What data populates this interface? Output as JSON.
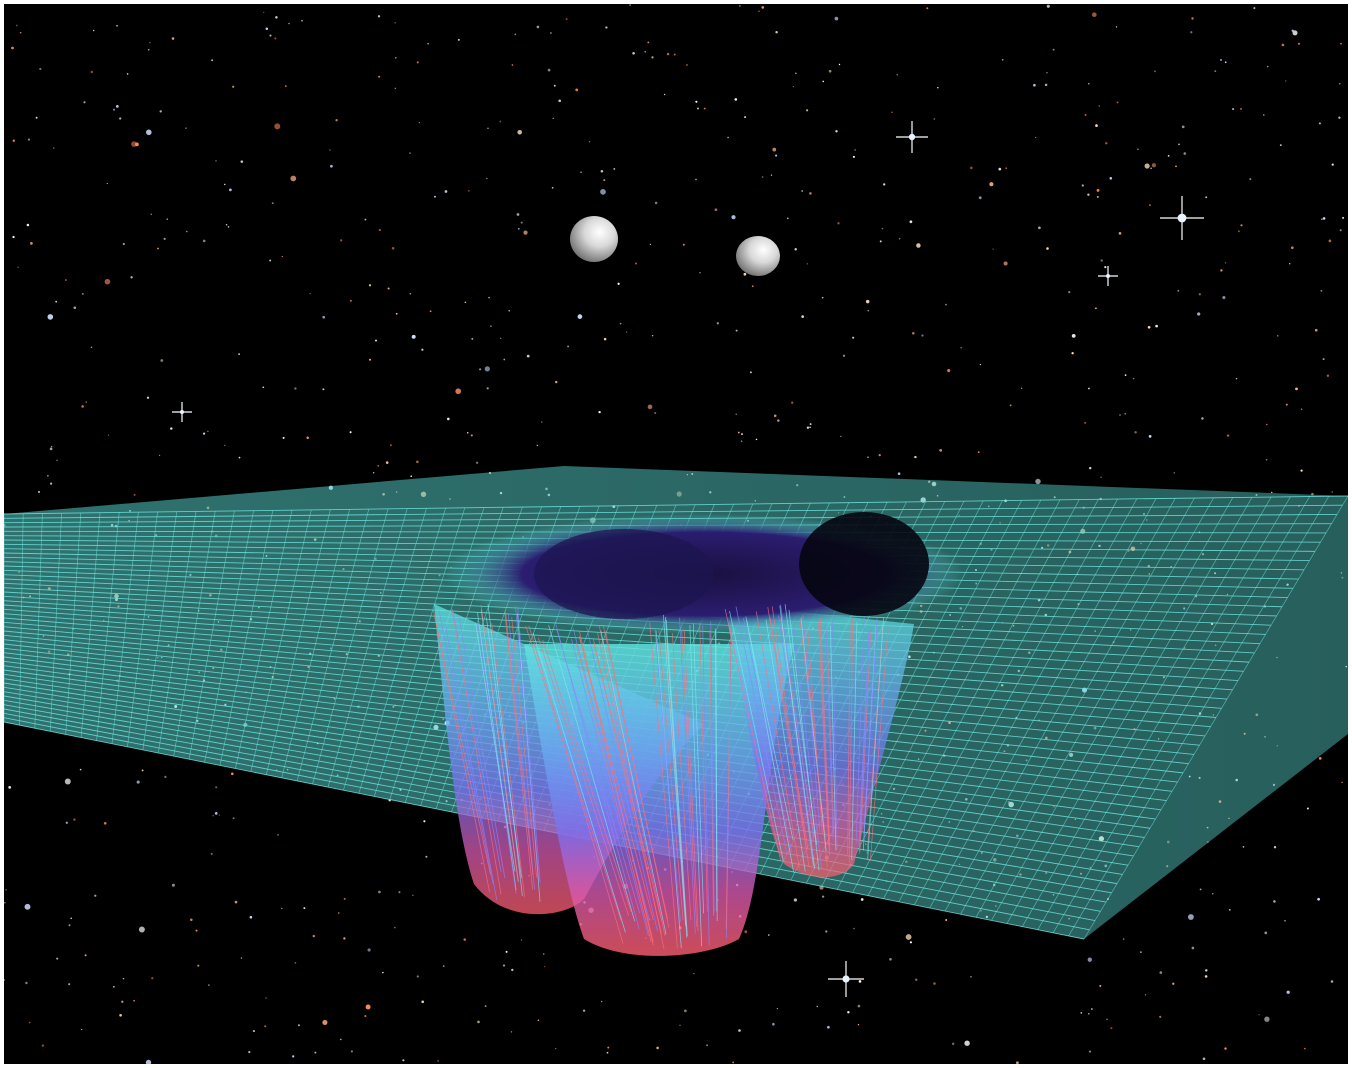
{
  "scene": {
    "subject": "spacetime-grid",
    "colors": {
      "background": "#000000",
      "grid_rim": "#5fe6e0",
      "grid_mid": "#6a7cf0",
      "grid_deep": "#ff5f6d",
      "sphere_light": "#f5f5f5",
      "sphere_shadow": "#7a7a7a",
      "page_border": "#ffffff"
    },
    "objects": [
      {
        "name": "sphere-left",
        "icon": "sphere-icon"
      },
      {
        "name": "sphere-right",
        "icon": "sphere-icon"
      }
    ]
  }
}
